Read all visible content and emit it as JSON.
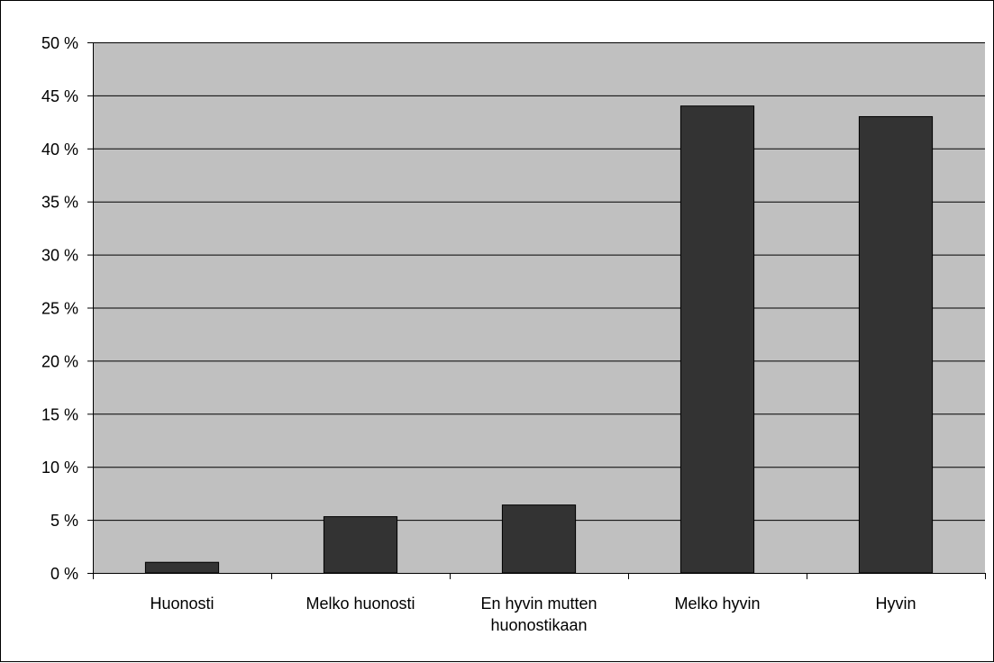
{
  "chart_data": {
    "type": "bar",
    "title": "",
    "xlabel": "",
    "ylabel": "",
    "categories": [
      [
        "Huonosti"
      ],
      [
        "Melko huonosti"
      ],
      [
        "En hyvin mutten",
        "huonostikaan"
      ],
      [
        "Melko hyvin"
      ],
      [
        "Hyvin"
      ]
    ],
    "values": [
      1,
      5.3,
      6.4,
      44,
      43
    ],
    "ylim": [
      0,
      50
    ],
    "y_ticks": [
      0,
      5,
      10,
      15,
      20,
      25,
      30,
      35,
      40,
      45,
      50
    ],
    "y_tick_labels": [
      "0 %",
      "5 %",
      "10 %",
      "15 %",
      "20 %",
      "25 %",
      "30 %",
      "35 %",
      "40 %",
      "45 %",
      "50 %"
    ],
    "grid": true,
    "legend": "none",
    "colors": {
      "plot_background": "#c0c0c0",
      "bar_fill": "#333333",
      "bar_stroke": "#000000",
      "gridline": "#000000",
      "page_background": "#ffffff"
    }
  }
}
